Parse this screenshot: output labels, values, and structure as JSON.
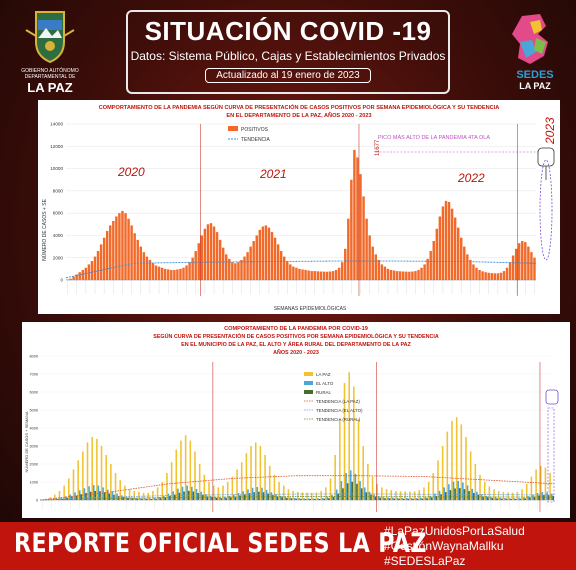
{
  "header": {
    "title": "SITUACIÓN COVID -19",
    "subtitle": "Datos: Sistema Público, Cajas y Establecimientos Privados",
    "updated": "Actualizado  al  19  enero de 2023",
    "left_logo_text": [
      "GOBIERNO AUTÓNOMO",
      "DEPARTAMENTAL DE",
      "LA PAZ"
    ],
    "right_logo_text": [
      "SEDES",
      "LA PAZ"
    ]
  },
  "footer": {
    "title": "REPORTE OFICIAL SEDES LA PAZ",
    "hashtags": [
      "#LaPazUnidosPorLaSalud",
      "#GestiónWaynaMallku",
      "#SEDESLaPaz"
    ]
  },
  "colors": {
    "bar": "#f26a2a",
    "trend": "#3a8cd9",
    "lapaz": "#f2c230",
    "elalto": "#4aa6d8",
    "rural": "#4a6b2a",
    "trend_lapaz": "#e0522a",
    "trend_elalto": "#6fa0d8",
    "trend_rural": "#6f8f3a",
    "line": "#c0140c"
  },
  "chart_data": [
    {
      "type": "bar",
      "title": "COMPORTAMIENTO DE LA PANDEMIA SEGÚN CURVA DE PRESENTACIÓN DE CASOS POSITIVOS POR SEMANA EPIDEMIOLÓGICA Y SU TENDENCIA",
      "subtitle": "EN EL DEPARTAMENTO DE LA PAZ, AÑOS 2020 - 2023",
      "xlabel": "SEMANAS EPIDEMIOLÓGICAS",
      "ylabel": "NÚMERO DE CASOS + SE",
      "ylim": [
        0,
        14000
      ],
      "yticks": [
        0,
        2000,
        4000,
        6000,
        8000,
        10000,
        12000,
        14000
      ],
      "legend": [
        "POSITIVOS",
        "TENDENCIA"
      ],
      "legend_position": "top-center",
      "year_labels": [
        "2020",
        "2021",
        "2022",
        "2023"
      ],
      "annotation": "PICO MÁS ALTO DE LA PANDEMIA 4TA OLA",
      "peak_label": "11677",
      "series": [
        {
          "name": "POSITIVOS",
          "values": [
            50,
            120,
            300,
            500,
            700,
            900,
            1100,
            1400,
            1700,
            2100,
            2600,
            3200,
            3800,
            4400,
            4900,
            5300,
            5700,
            6000,
            6200,
            6000,
            5500,
            4900,
            4200,
            3600,
            3000,
            2500,
            2100,
            1800,
            1500,
            1300,
            1200,
            1100,
            1000,
            950,
            900,
            900,
            950,
            1000,
            1100,
            1300,
            1600,
            2000,
            2600,
            3300,
            4000,
            4600,
            5000,
            5100,
            4800,
            4300,
            3600,
            2900,
            2300,
            1900,
            1600,
            1500,
            1600,
            1800,
            2100,
            2500,
            3000,
            3500,
            4000,
            4500,
            4800,
            4900,
            4700,
            4300,
            3800,
            3200,
            2600,
            2100,
            1700,
            1400,
            1200,
            1100,
            1000,
            950,
            900,
            850,
            800,
            800,
            780,
            760,
            750,
            740,
            760,
            800,
            900,
            1100,
            1600,
            2800,
            5500,
            9000,
            11677,
            11000,
            9500,
            7500,
            5500,
            4000,
            3000,
            2300,
            1800,
            1400,
            1200,
            1000,
            900,
            850,
            800,
            780,
            760,
            750,
            740,
            760,
            800,
            900,
            1100,
            1400,
            1900,
            2600,
            3500,
            4600,
            5700,
            6600,
            7100,
            7000,
            6400,
            5600,
            4700,
            3800,
            3000,
            2300,
            1800,
            1400,
            1100,
            900,
            780,
            700,
            650,
            620,
            600,
            600,
            650,
            800,
            1100,
            1600,
            2200,
            2800,
            3300,
            3500,
            3400,
            3000,
            2500,
            2000
          ]
        }
      ],
      "trend": {
        "name": "TENDENCIA",
        "values": [
          200,
          1500,
          1600,
          1650,
          1700,
          1700,
          1650,
          1500
        ]
      }
    },
    {
      "type": "bar",
      "title": "COMPORTAMIENTO DE LA PANDEMIA POR COVID-19",
      "subtitle_lines": [
        "SEGÚN CURVA DE PRESENTACIÓN DE CASOS POSITIVOS POR SEMANA EPIDEMIOLÓGICA Y SU TENDENCIA",
        "EN EL  MUNICIPIO DE LA PAZ, EL ALTO Y ÁREA RURAL DEL DEPARTAMENTO DE LA PAZ",
        "AÑOS 2020 - 2023"
      ],
      "ylabel": "NÚMERO DE CASOS + SEMANA",
      "ylim": [
        0,
        8000
      ],
      "yticks": [
        0,
        500,
        1000,
        1500,
        2000,
        2500,
        3000,
        3500,
        4000,
        4500,
        5000,
        5500,
        6000,
        6500,
        7000,
        7500,
        8000
      ],
      "legend": [
        "LA PAZ",
        "EL ALTO",
        "RURAL",
        "TENDENCIA (LA PAZ)",
        "TENDENCIA (EL ALTO)",
        "TENDENCIA (RURAL)"
      ],
      "legend_position": "top-center",
      "series": [
        {
          "name": "LA PAZ",
          "values": [
            20,
            60,
            150,
            300,
            500,
            800,
            1200,
            1700,
            2200,
            2700,
            3200,
            3500,
            3400,
            3000,
            2500,
            2000,
            1500,
            1100,
            800,
            600,
            500,
            450,
            400,
            400,
            500,
            700,
            1000,
            1500,
            2100,
            2800,
            3300,
            3600,
            3300,
            2700,
            2000,
            1400,
            1000,
            800,
            700,
            800,
            1000,
            1300,
            1700,
            2100,
            2600,
            3000,
            3200,
            3000,
            2500,
            1900,
            1400,
            1000,
            800,
            600,
            500,
            450,
            420,
            400,
            400,
            420,
            500,
            700,
            1200,
            2500,
            4500,
            6500,
            7100,
            6300,
            4500,
            3000,
            2000,
            1300,
            900,
            700,
            600,
            550,
            500,
            480,
            470,
            460,
            480,
            550,
            700,
            1000,
            1500,
            2200,
            3000,
            3800,
            4400,
            4600,
            4200,
            3500,
            2700,
            2000,
            1400,
            1000,
            750,
            600,
            500,
            450,
            420,
            400,
            450,
            600,
            900,
            1300,
            1700,
            1900,
            1800,
            1500
          ]
        },
        {
          "name": "EL ALTO",
          "values": [
            5,
            15,
            40,
            80,
            130,
            200,
            300,
            420,
            540,
            650,
            760,
            830,
            800,
            700,
            580,
            460,
            350,
            260,
            190,
            140,
            110,
            100,
            90,
            90,
            110,
            160,
            230,
            350,
            480,
            630,
            740,
            800,
            740,
            610,
            460,
            320,
            230,
            180,
            160,
            180,
            230,
            300,
            390,
            480,
            590,
            680,
            720,
            680,
            560,
            430,
            320,
            230,
            180,
            140,
            110,
            100,
            95,
            90,
            90,
            95,
            110,
            160,
            280,
            580,
            1050,
            1500,
            1650,
            1450,
            1050,
            700,
            460,
            300,
            210,
            160,
            140,
            130,
            115,
            110,
            110,
            105,
            110,
            125,
            160,
            230,
            350,
            510,
            700,
            880,
            1020,
            1060,
            970,
            810,
            620,
            460,
            320,
            230,
            170,
            140,
            115,
            105,
            100,
            95,
            105,
            140,
            210,
            300,
            390,
            440,
            420,
            350
          ]
        },
        {
          "name": "RURAL",
          "values": [
            2,
            8,
            20,
            45,
            75,
            120,
            180,
            250,
            320,
            390,
            460,
            500,
            490,
            430,
            360,
            290,
            220,
            160,
            120,
            90,
            70,
            65,
            60,
            60,
            70,
            100,
            150,
            220,
            300,
            400,
            470,
            510,
            470,
            390,
            290,
            200,
            150,
            120,
            100,
            120,
            150,
            190,
            250,
            310,
            380,
            430,
            460,
            430,
            360,
            270,
            200,
            150,
            120,
            90,
            75,
            65,
            60,
            60,
            60,
            60,
            75,
            100,
            180,
            360,
            650,
            930,
            1020,
            900,
            650,
            430,
            290,
            190,
            130,
            100,
            90,
            80,
            75,
            70,
            70,
            68,
            70,
            80,
            100,
            145,
            220,
            320,
            440,
            550,
            640,
            660,
            600,
            500,
            390,
            290,
            200,
            145,
            110,
            88,
            75,
            68,
            64,
            60,
            68,
            90,
            130,
            190,
            245,
            280,
            265,
            220
          ]
        }
      ],
      "trends": [
        {
          "name": "TENDENCIA (LA PAZ)",
          "values": [
            0,
            400,
            900,
            1200,
            1350,
            1350,
            1300,
            1100,
            900
          ]
        },
        {
          "name": "TENDENCIA (EL ALTO)",
          "values": [
            0,
            150,
            250,
            300,
            330,
            340,
            320,
            300,
            280
          ]
        },
        {
          "name": "TENDENCIA (RURAL)",
          "values": [
            0,
            80,
            140,
            170,
            190,
            190,
            180,
            170,
            160
          ]
        }
      ]
    }
  ]
}
